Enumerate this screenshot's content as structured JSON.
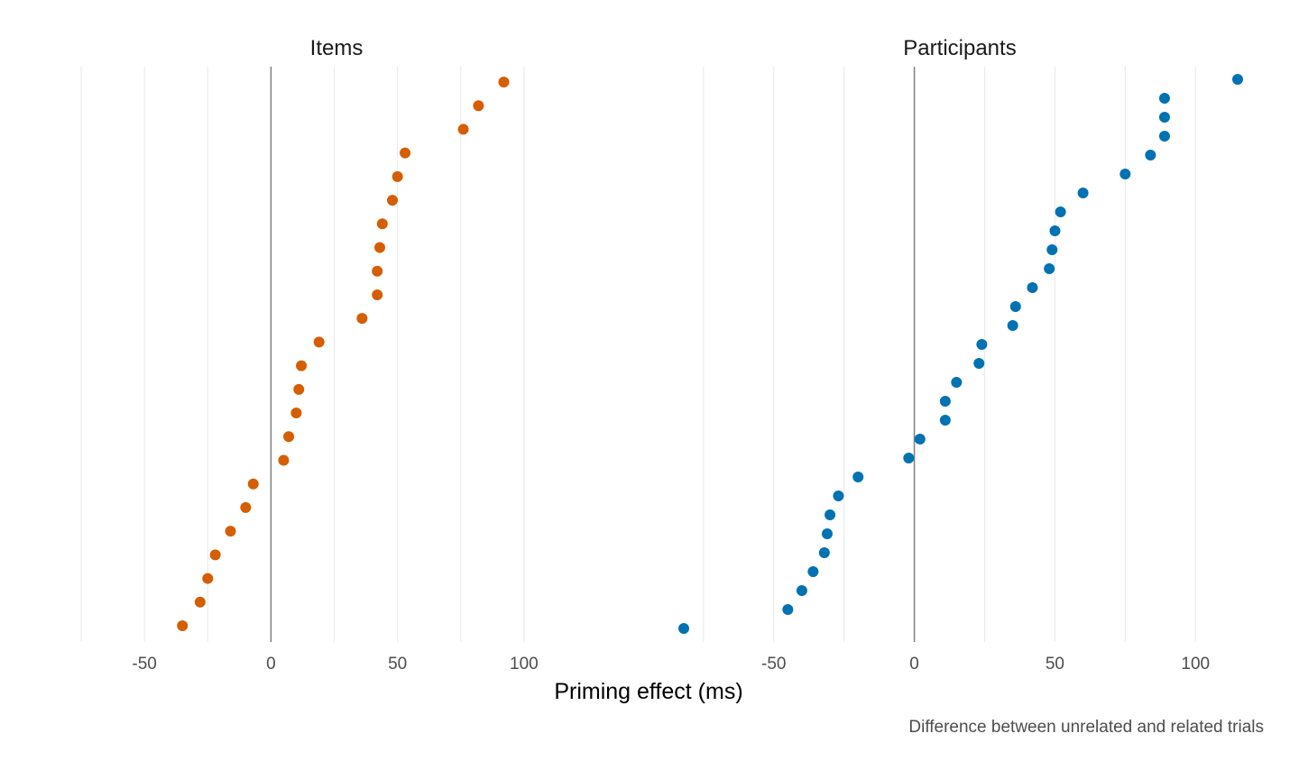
{
  "chart_data": {
    "type": "scatter",
    "xlabel": "Priming effect (ms)",
    "caption": "Difference between unrelated and related trials",
    "grid": true,
    "facets": [
      {
        "title": "Items",
        "color": "#D55E00",
        "xlim": [
          -75,
          120
        ],
        "ticks": [
          -50,
          0,
          50,
          100
        ],
        "tick_labels": [
          "-50",
          "0",
          "50",
          "100"
        ],
        "values": [
          -35,
          -28,
          -25,
          -22,
          -16,
          -10,
          -7,
          5,
          7,
          10,
          11,
          12,
          19,
          36,
          42,
          42,
          43,
          44,
          48,
          50,
          53,
          76,
          82,
          92
        ]
      },
      {
        "title": "Participants",
        "color": "#0072B2",
        "xlim": [
          -82,
          115
        ],
        "ticks": [
          -50,
          0,
          50,
          100
        ],
        "tick_labels": [
          "-50",
          "0",
          "50",
          "100"
        ],
        "values": [
          -82,
          -45,
          -40,
          -36,
          -32,
          -31,
          -30,
          -27,
          -20,
          -2,
          2,
          11,
          11,
          15,
          23,
          24,
          35,
          36,
          42,
          48,
          49,
          50,
          52,
          60,
          75,
          84,
          89,
          89,
          89,
          115
        ]
      }
    ]
  }
}
